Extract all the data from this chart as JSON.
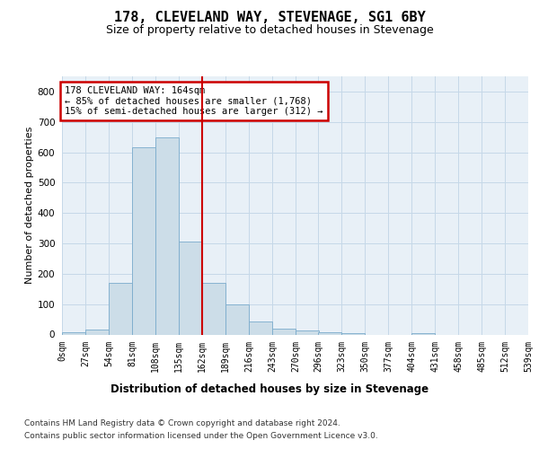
{
  "title": "178, CLEVELAND WAY, STEVENAGE, SG1 6BY",
  "subtitle": "Size of property relative to detached houses in Stevenage",
  "xlabel": "Distribution of detached houses by size in Stevenage",
  "ylabel": "Number of detached properties",
  "footer_line1": "Contains HM Land Registry data © Crown copyright and database right 2024.",
  "footer_line2": "Contains public sector information licensed under the Open Government Licence v3.0.",
  "property_line_x": 162,
  "bin_width": 27,
  "bin_starts": [
    0,
    27,
    54,
    81,
    108,
    135,
    162,
    189,
    216,
    243,
    270,
    296,
    323,
    350,
    377,
    404,
    431,
    458,
    485,
    512
  ],
  "bar_heights": [
    8,
    15,
    170,
    615,
    650,
    305,
    170,
    98,
    43,
    18,
    12,
    8,
    4,
    0,
    0,
    5,
    0,
    0,
    0,
    0
  ],
  "bar_color": "#ccdde8",
  "bar_edge_color": "#7aabcc",
  "line_color": "#cc0000",
  "annotation_line1": "178 CLEVELAND WAY: 164sqm",
  "annotation_line2": "← 85% of detached houses are smaller (1,768)",
  "annotation_line3": "15% of semi-detached houses are larger (312) →",
  "annotation_box_edgecolor": "#cc0000",
  "annotation_bg_color": "#ffffff",
  "ylim": [
    0,
    850
  ],
  "yticks": [
    0,
    100,
    200,
    300,
    400,
    500,
    600,
    700,
    800
  ],
  "grid_color": "#c5d8e8",
  "background_color": "#e8f0f7",
  "title_fontsize": 11,
  "subtitle_fontsize": 9,
  "ylabel_fontsize": 8,
  "xlabel_fontsize": 8.5,
  "tick_fontsize": 7,
  "annotation_fontsize": 7.5,
  "footer_fontsize": 6.5
}
